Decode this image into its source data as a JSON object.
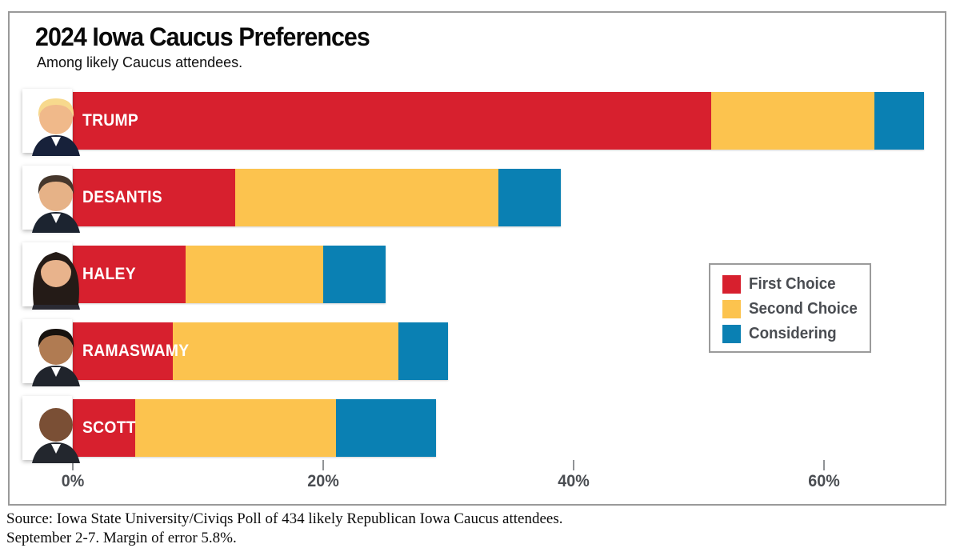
{
  "chart": {
    "title": "2024 Iowa Caucus Preferences",
    "subtitle": "Among likely Caucus attendees."
  },
  "chart_data": {
    "type": "bar",
    "orientation": "horizontal",
    "stacked": true,
    "unit": "percent",
    "title": "2024 Iowa Caucus Preferences",
    "subtitle": "Among likely Caucus attendees.",
    "categories": [
      "TRUMP",
      "DESANTIS",
      "HALEY",
      "RAMASWAMY",
      "SCOTT"
    ],
    "series": [
      {
        "name": "First Choice",
        "color": "#d7202e",
        "values": [
          51,
          13,
          9,
          8,
          5
        ]
      },
      {
        "name": "Second Choice",
        "color": "#fcc34e",
        "values": [
          13,
          21,
          11,
          18,
          16
        ]
      },
      {
        "name": "Considering",
        "color": "#0a80b3",
        "values": [
          4,
          5,
          5,
          4,
          8
        ]
      }
    ],
    "totals": [
      68,
      39,
      25,
      30,
      29
    ],
    "x_ticks": [
      "0%",
      "20%",
      "40%",
      "60%"
    ],
    "x_tick_values": [
      0,
      20,
      40,
      60
    ],
    "xlim": [
      0,
      69.5
    ],
    "grid": false,
    "legend_position": "middle-right",
    "bar_label_color": "#ffffff"
  },
  "avatars": [
    {
      "name": "trump-photo",
      "style": "short",
      "skin": "#f0b98a",
      "hair": "#f7d98d",
      "suit": "#17213a"
    },
    {
      "name": "desantis-photo",
      "style": "short",
      "skin": "#e6b287",
      "hair": "#46372c",
      "suit": "#1c2430"
    },
    {
      "name": "haley-photo",
      "style": "long",
      "skin": "#e8b38c",
      "hair": "#241b17",
      "suit": "#2a2a33"
    },
    {
      "name": "ramaswamy-photo",
      "style": "short",
      "skin": "#b07b52",
      "hair": "#17120e",
      "suit": "#20242c"
    },
    {
      "name": "scott-photo",
      "style": "bald",
      "skin": "#7a4f35",
      "hair": "#3a2418",
      "suit": "#23272e"
    }
  ],
  "frame_border_color": "#9a9a9a",
  "source": {
    "line1": "Source: Iowa State University/Civiqs Poll of 434 likely Republican Iowa Caucus attendees.",
    "line2": "September 2-7. Margin of error 5.8%."
  }
}
